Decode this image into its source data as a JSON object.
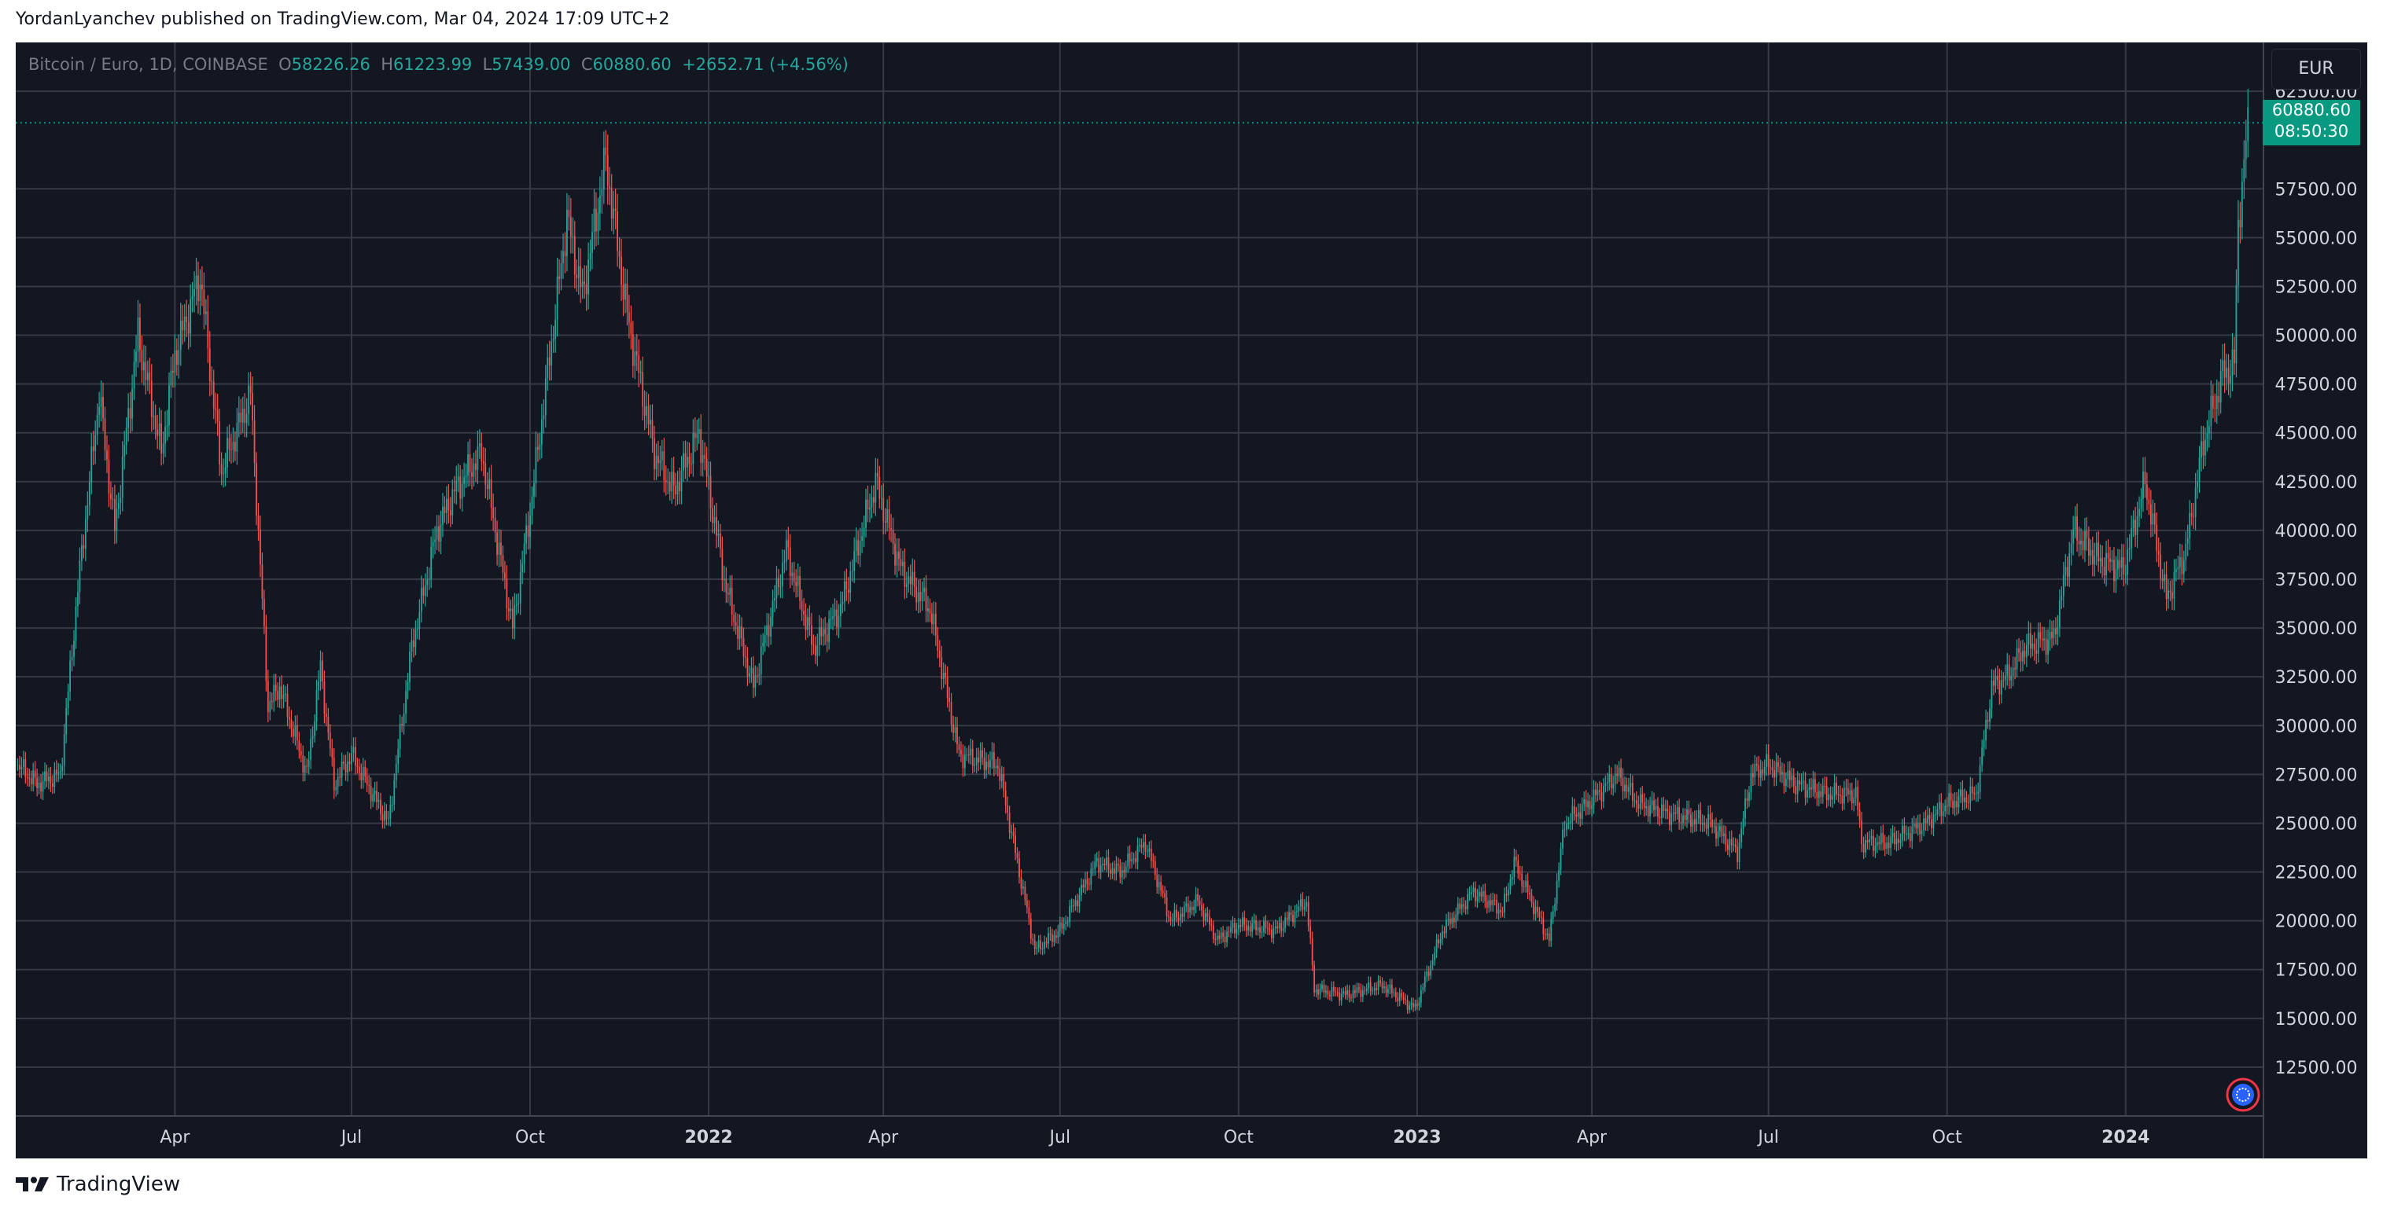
{
  "header": {
    "publisher": "YordanLyanchev published on TradingView.com, Mar 04, 2024 17:09 UTC+2"
  },
  "legend": {
    "symbol": "Bitcoin / Euro, 1D, COINBASE",
    "o_label": "O",
    "o": "58226.26",
    "h_label": "H",
    "h": "61223.99",
    "l_label": "L",
    "l": "57439.00",
    "c_label": "C",
    "c": "60880.60",
    "change": "+2652.71 (+4.56%)"
  },
  "currency": "EUR",
  "price_tag": {
    "price": "60880.60",
    "countdown": "08:50:30"
  },
  "footer": {
    "brand": "TradingView"
  },
  "colors": {
    "background": "#131722",
    "grid": "#363a45",
    "up": "#26a69a",
    "down": "#ef5350",
    "tag": "#089981",
    "text": "#d1d4dc"
  },
  "chart_data": {
    "type": "candlestick",
    "symbol": "Bitcoin / Euro",
    "interval": "1D",
    "exchange": "COINBASE",
    "ylim": [
      10000,
      65000
    ],
    "y_ticks": [
      12500,
      15000,
      17500,
      20000,
      22500,
      25000,
      27500,
      30000,
      32500,
      35000,
      37500,
      40000,
      42500,
      45000,
      47500,
      50000,
      52500,
      55000,
      57500,
      62500
    ],
    "y_tick_labels": [
      "12500.00",
      "15000.00",
      "17500.00",
      "20000.00",
      "22500.00",
      "25000.00",
      "27500.00",
      "30000.00",
      "32500.00",
      "35000.00",
      "37500.00",
      "40000.00",
      "42500.00",
      "45000.00",
      "47500.00",
      "50000.00",
      "52500.00",
      "55000.00",
      "57500.00",
      "62500.00"
    ],
    "xlim": [
      "2021-01-09",
      "2024-03-12"
    ],
    "x_ticks": [
      {
        "date": "2021-04-01",
        "label": "Apr",
        "bold": false
      },
      {
        "date": "2021-07-01",
        "label": "Jul",
        "bold": false
      },
      {
        "date": "2021-10-01",
        "label": "Oct",
        "bold": false
      },
      {
        "date": "2022-01-01",
        "label": "2022",
        "bold": true
      },
      {
        "date": "2022-04-01",
        "label": "Apr",
        "bold": false
      },
      {
        "date": "2022-07-01",
        "label": "Jul",
        "bold": false
      },
      {
        "date": "2022-10-01",
        "label": "Oct",
        "bold": false
      },
      {
        "date": "2023-01-01",
        "label": "2023",
        "bold": true
      },
      {
        "date": "2023-04-01",
        "label": "Apr",
        "bold": false
      },
      {
        "date": "2023-07-01",
        "label": "Jul",
        "bold": false
      },
      {
        "date": "2023-10-01",
        "label": "Oct",
        "bold": false
      },
      {
        "date": "2024-01-01",
        "label": "2024",
        "bold": true
      }
    ],
    "last_price": 60880.6,
    "close_path": [
      [
        "2021-01-10",
        28000
      ],
      [
        "2021-01-20",
        27000
      ],
      [
        "2021-02-01",
        27500
      ],
      [
        "2021-02-10",
        37000
      ],
      [
        "2021-02-21",
        47000
      ],
      [
        "2021-03-01",
        40000
      ],
      [
        "2021-03-13",
        50000
      ],
      [
        "2021-03-25",
        44000
      ],
      [
        "2021-04-01",
        49000
      ],
      [
        "2021-04-14",
        53000
      ],
      [
        "2021-04-25",
        43000
      ],
      [
        "2021-05-10",
        47000
      ],
      [
        "2021-05-19",
        31000
      ],
      [
        "2021-05-25",
        32000
      ],
      [
        "2021-06-08",
        27500
      ],
      [
        "2021-06-15",
        33000
      ],
      [
        "2021-06-22",
        27000
      ],
      [
        "2021-07-01",
        28500
      ],
      [
        "2021-07-20",
        25000
      ],
      [
        "2021-08-01",
        34000
      ],
      [
        "2021-08-14",
        40000
      ],
      [
        "2021-08-23",
        42000
      ],
      [
        "2021-09-06",
        44000
      ],
      [
        "2021-09-22",
        35000
      ],
      [
        "2021-10-01",
        41000
      ],
      [
        "2021-10-15",
        52000
      ],
      [
        "2021-10-20",
        56000
      ],
      [
        "2021-10-28",
        52000
      ],
      [
        "2021-11-09",
        59000
      ],
      [
        "2021-11-20",
        51000
      ],
      [
        "2021-12-04",
        44000
      ],
      [
        "2021-12-14",
        42000
      ],
      [
        "2021-12-27",
        45000
      ],
      [
        "2022-01-10",
        37000
      ],
      [
        "2022-01-24",
        32000
      ],
      [
        "2022-02-10",
        39000
      ],
      [
        "2022-02-24",
        34000
      ],
      [
        "2022-03-10",
        36000
      ],
      [
        "2022-03-28",
        42500
      ],
      [
        "2022-04-10",
        38000
      ],
      [
        "2022-04-25",
        36000
      ],
      [
        "2022-05-10",
        28500
      ],
      [
        "2022-05-30",
        28000
      ],
      [
        "2022-06-13",
        21000
      ],
      [
        "2022-06-18",
        18500
      ],
      [
        "2022-07-01",
        19500
      ],
      [
        "2022-07-20",
        23000
      ],
      [
        "2022-08-01",
        22500
      ],
      [
        "2022-08-14",
        24000
      ],
      [
        "2022-08-27",
        20000
      ],
      [
        "2022-09-10",
        21000
      ],
      [
        "2022-09-20",
        19000
      ],
      [
        "2022-10-01",
        19800
      ],
      [
        "2022-10-20",
        19500
      ],
      [
        "2022-11-05",
        21000
      ],
      [
        "2022-11-09",
        16500
      ],
      [
        "2022-11-25",
        16200
      ],
      [
        "2022-12-14",
        16700
      ],
      [
        "2022-12-31",
        15500
      ],
      [
        "2023-01-14",
        19500
      ],
      [
        "2023-01-30",
        21500
      ],
      [
        "2023-02-14",
        20500
      ],
      [
        "2023-02-20",
        23000
      ],
      [
        "2023-03-10",
        19000
      ],
      [
        "2023-03-18",
        25000
      ],
      [
        "2023-03-30",
        26000
      ],
      [
        "2023-04-14",
        27500
      ],
      [
        "2023-04-25",
        26000
      ],
      [
        "2023-05-10",
        25500
      ],
      [
        "2023-06-01",
        25000
      ],
      [
        "2023-06-15",
        23500
      ],
      [
        "2023-06-22",
        27500
      ],
      [
        "2023-07-01",
        28000
      ],
      [
        "2023-07-15",
        27000
      ],
      [
        "2023-07-31",
        26500
      ],
      [
        "2023-08-15",
        26500
      ],
      [
        "2023-08-18",
        24000
      ],
      [
        "2023-09-01",
        24000
      ],
      [
        "2023-09-20",
        25000
      ],
      [
        "2023-10-01",
        26000
      ],
      [
        "2023-10-16",
        26500
      ],
      [
        "2023-10-24",
        32000
      ],
      [
        "2023-11-01",
        32500
      ],
      [
        "2023-11-10",
        34000
      ],
      [
        "2023-11-25",
        34500
      ],
      [
        "2023-12-05",
        40000
      ],
      [
        "2023-12-18",
        38500
      ],
      [
        "2023-12-31",
        38000
      ],
      [
        "2024-01-11",
        42500
      ],
      [
        "2024-01-22",
        36500
      ],
      [
        "2024-02-01",
        39000
      ],
      [
        "2024-02-10",
        44500
      ],
      [
        "2024-02-20",
        48000
      ],
      [
        "2024-02-26",
        48500
      ],
      [
        "2024-02-28",
        56000
      ],
      [
        "2024-03-01",
        57500
      ],
      [
        "2024-03-04",
        60880
      ]
    ]
  }
}
